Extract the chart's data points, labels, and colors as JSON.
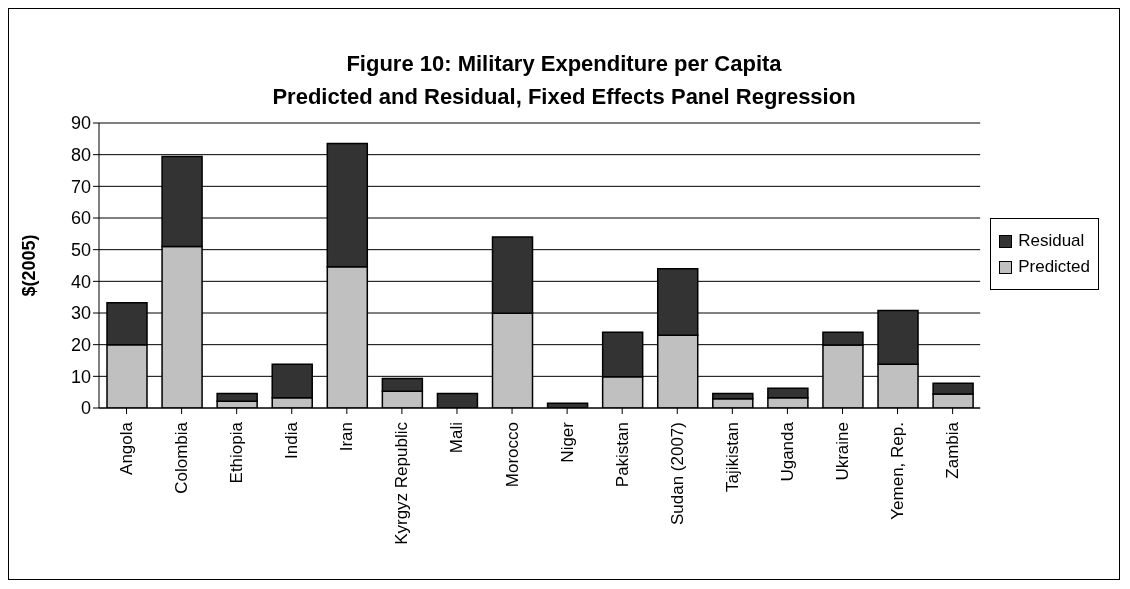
{
  "chart_data": {
    "type": "bar",
    "title": "Figure 10: Military Expenditure per Capita\nPredicted and Residual, Fixed Effects Panel Regression",
    "ylabel": "$(2005)",
    "categories": [
      "Angola",
      "Colombia",
      "Ethiopia",
      "India",
      "Iran",
      "Kyrgyz Republic",
      "Mali",
      "Morocco",
      "Niger",
      "Pakistan",
      "Sudan (2007)",
      "Tajikistan",
      "Uganda",
      "Ukraine",
      "Yemen, Rep.",
      "Zambia"
    ],
    "series": [
      {
        "name": "Predicted",
        "color": "#c0c0c0",
        "values": [
          20,
          51,
          2.1,
          3.2,
          44.6,
          5.3,
          null,
          29.9,
          null,
          9.9,
          23,
          2.9,
          3.2,
          19.9,
          13.8,
          4.4
        ]
      },
      {
        "name": "Residual",
        "color": "#333333",
        "values": [
          13.2,
          28.4,
          2.5,
          10.6,
          38.9,
          4,
          4.6,
          24.1,
          1.5,
          14,
          21,
          1.7,
          3,
          4,
          17,
          3.4
        ]
      }
    ],
    "stacked": true,
    "ylim": [
      0,
      90
    ],
    "yticks": [
      0,
      10,
      20,
      30,
      40,
      50,
      60,
      70,
      80,
      90
    ],
    "grid": "y",
    "legend": "right"
  }
}
